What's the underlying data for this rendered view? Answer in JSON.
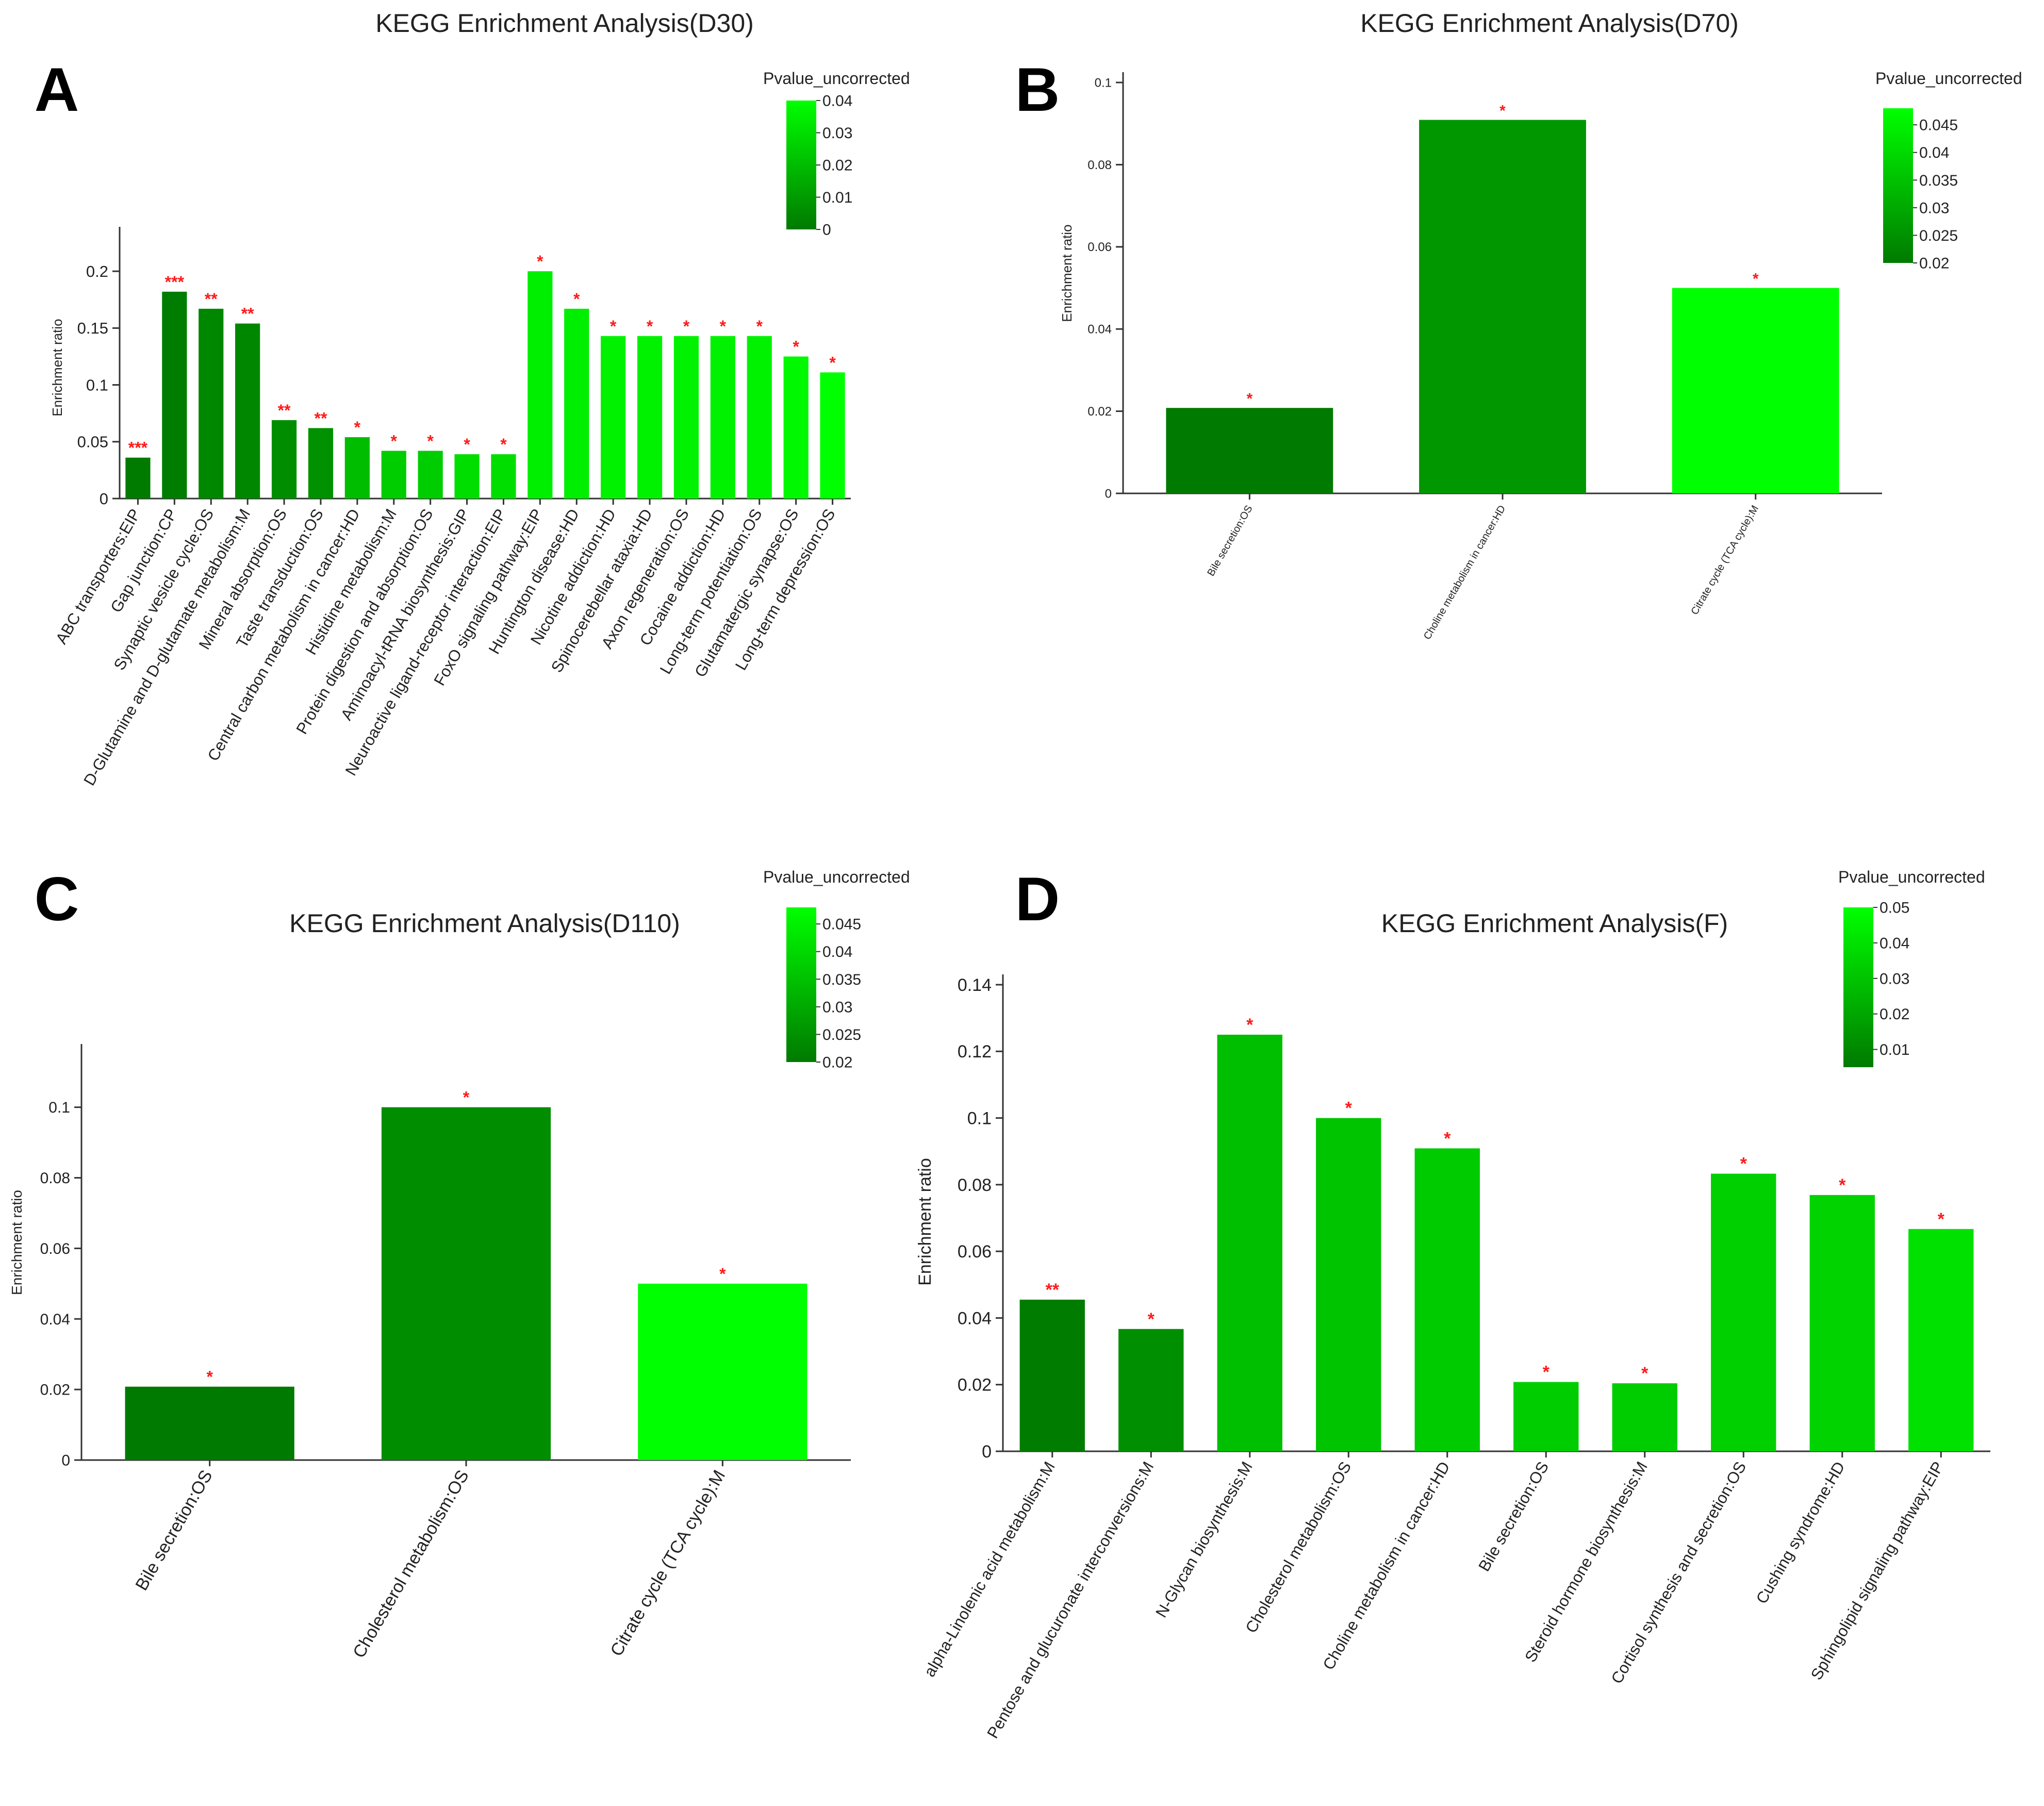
{
  "chart_data": [
    {
      "panel_label": "A",
      "type": "bar",
      "title": "KEGG Enrichment Analysis(D30)",
      "xlabel": "",
      "ylabel": "Enrichment ratio",
      "ylim": [
        0,
        0.23
      ],
      "yticks": [
        0,
        0.05,
        0.1,
        0.15,
        0.2
      ],
      "ytick_labels": [
        "0",
        "0.05",
        "0.1",
        "0.15",
        "0.2"
      ],
      "legend": {
        "title": "Pvalue_uncorrected",
        "range": [
          0,
          0.04
        ],
        "ticks": [
          0,
          0.01,
          0.02,
          0.03,
          0.04
        ],
        "tick_labels": [
          "0",
          "0.01",
          "0.02",
          "0.03",
          "0.04"
        ],
        "position": "top-right"
      },
      "categories": [
        "ABC transporters:EIP",
        "Gap junction:CP",
        "Synaptic vesicle cycle:OS",
        "D-Glutamine and D-glutamate metabolism:M",
        "Mineral absorption:OS",
        "Taste transduction:OS",
        "Central carbon metabolism in cancer:HD",
        "Histidine metabolism:M",
        "Protein digestion and absorption:OS",
        "Aminoacyl-tRNA biosynthesis:GIP",
        "Neuroactive ligand-receptor interaction:EIP",
        "FoxO signaling pathway:EIP",
        "Huntington disease:HD",
        "Nicotine addiction:HD",
        "Spinocerebellar ataxia:HD",
        "Axon regeneration:OS",
        "Cocaine addiction:HD",
        "Long-term potentiation:OS",
        "Glutamatergic synapse:OS",
        "Long-term depression:OS"
      ],
      "values": [
        0.036,
        0.182,
        0.167,
        0.154,
        0.069,
        0.062,
        0.054,
        0.042,
        0.042,
        0.039,
        0.039,
        0.2,
        0.167,
        0.143,
        0.143,
        0.143,
        0.143,
        0.143,
        0.125,
        0.111
      ],
      "pvalues": [
        0.0002,
        0.0005,
        0.004,
        0.004,
        0.006,
        0.007,
        0.02,
        0.025,
        0.025,
        0.03,
        0.03,
        0.035,
        0.035,
        0.036,
        0.036,
        0.036,
        0.036,
        0.036,
        0.038,
        0.04
      ],
      "significance": [
        "***",
        "***",
        "**",
        "**",
        "**",
        "**",
        "*",
        "*",
        "*",
        "*",
        "*",
        "*",
        "*",
        "*",
        "*",
        "*",
        "*",
        "*",
        "*",
        "*"
      ]
    },
    {
      "panel_label": "B",
      "type": "bar",
      "title": "KEGG Enrichment Analysis(D70)",
      "xlabel": "",
      "ylabel": "Enrichment ratio",
      "ylim": [
        0,
        0.1
      ],
      "yticks": [
        0,
        0.02,
        0.04,
        0.06,
        0.08,
        0.1
      ],
      "ytick_labels": [
        "0",
        "0.02",
        "0.04",
        "0.06",
        "0.08",
        "0.1"
      ],
      "legend": {
        "title": "Pvalue_uncorrected",
        "range": [
          0.02,
          0.048
        ],
        "ticks": [
          0.02,
          0.025,
          0.03,
          0.035,
          0.04,
          0.045
        ],
        "tick_labels": [
          "0.02",
          "0.025",
          "0.03",
          "0.035",
          "0.04",
          "0.045"
        ],
        "position": "top-right"
      },
      "categories": [
        "Bile secretion:OS",
        "Choline metabolism in cancer:HD",
        "Citrate cycle (TCA cycle):M"
      ],
      "values": [
        0.0208,
        0.0909,
        0.05
      ],
      "pvalues": [
        0.02,
        0.026,
        0.048
      ],
      "significance": [
        "*",
        "*",
        "*"
      ]
    },
    {
      "panel_label": "C",
      "type": "bar",
      "title": "KEGG Enrichment Analysis(D110)",
      "xlabel": "",
      "ylabel": "Enrichment ratio",
      "ylim": [
        0,
        0.115
      ],
      "yticks": [
        0,
        0.02,
        0.04,
        0.06,
        0.08,
        0.1
      ],
      "ytick_labels": [
        "0",
        "0.02",
        "0.04",
        "0.06",
        "0.08",
        "0.1"
      ],
      "legend": {
        "title": "Pvalue_uncorrected",
        "range": [
          0.02,
          0.048
        ],
        "ticks": [
          0.02,
          0.025,
          0.03,
          0.035,
          0.04,
          0.045
        ],
        "tick_labels": [
          "0.02",
          "0.025",
          "0.03",
          "0.035",
          "0.04",
          "0.045"
        ],
        "position": "top-right"
      },
      "categories": [
        "Bile secretion:OS",
        "Cholesterol metabolism:OS",
        "Citrate cycle (TCA cycle):M"
      ],
      "values": [
        0.0208,
        0.1,
        0.05
      ],
      "pvalues": [
        0.02,
        0.024,
        0.048
      ],
      "significance": [
        "*",
        "*",
        "*"
      ]
    },
    {
      "panel_label": "D",
      "type": "bar",
      "title": "KEGG Enrichment Analysis(F)",
      "xlabel": "",
      "ylabel": "Enrichment ratio",
      "ylim": [
        0,
        0.14
      ],
      "yticks": [
        0,
        0.02,
        0.04,
        0.06,
        0.08,
        0.1,
        0.12,
        0.14
      ],
      "ytick_labels": [
        "0",
        "0.02",
        "0.04",
        "0.06",
        "0.08",
        "0.1",
        "0.12",
        "0.14"
      ],
      "legend": {
        "title": "Pvalue_uncorrected",
        "range": [
          0.005,
          0.05
        ],
        "ticks": [
          0.01,
          0.02,
          0.03,
          0.04,
          0.05
        ],
        "tick_labels": [
          "0.01",
          "0.02",
          "0.03",
          "0.04",
          "0.05"
        ],
        "position": "top-right"
      },
      "categories": [
        "alpha-Linolenic acid metabolism:M",
        "Pentose and glucuronate interconversions:M",
        "N-Glycan biosynthesis:M",
        "Cholesterol metabolism:OS",
        "Choline metabolism in cancer:HD",
        "Bile secretion:OS",
        "Steroid hormone biosynthesis:M",
        "Cortisol synthesis and secretion:OS",
        "Cushing syndrome:HD",
        "Sphingolipid signaling pathway:EIP"
      ],
      "values": [
        0.0455,
        0.0367,
        0.125,
        0.1,
        0.0909,
        0.0208,
        0.0204,
        0.0833,
        0.0769,
        0.0667
      ],
      "pvalues": [
        0.006,
        0.012,
        0.028,
        0.03,
        0.032,
        0.033,
        0.033,
        0.034,
        0.035,
        0.04
      ],
      "significance": [
        "**",
        "*",
        "*",
        "*",
        "*",
        "*",
        "*",
        "*",
        "*",
        "*"
      ]
    }
  ]
}
